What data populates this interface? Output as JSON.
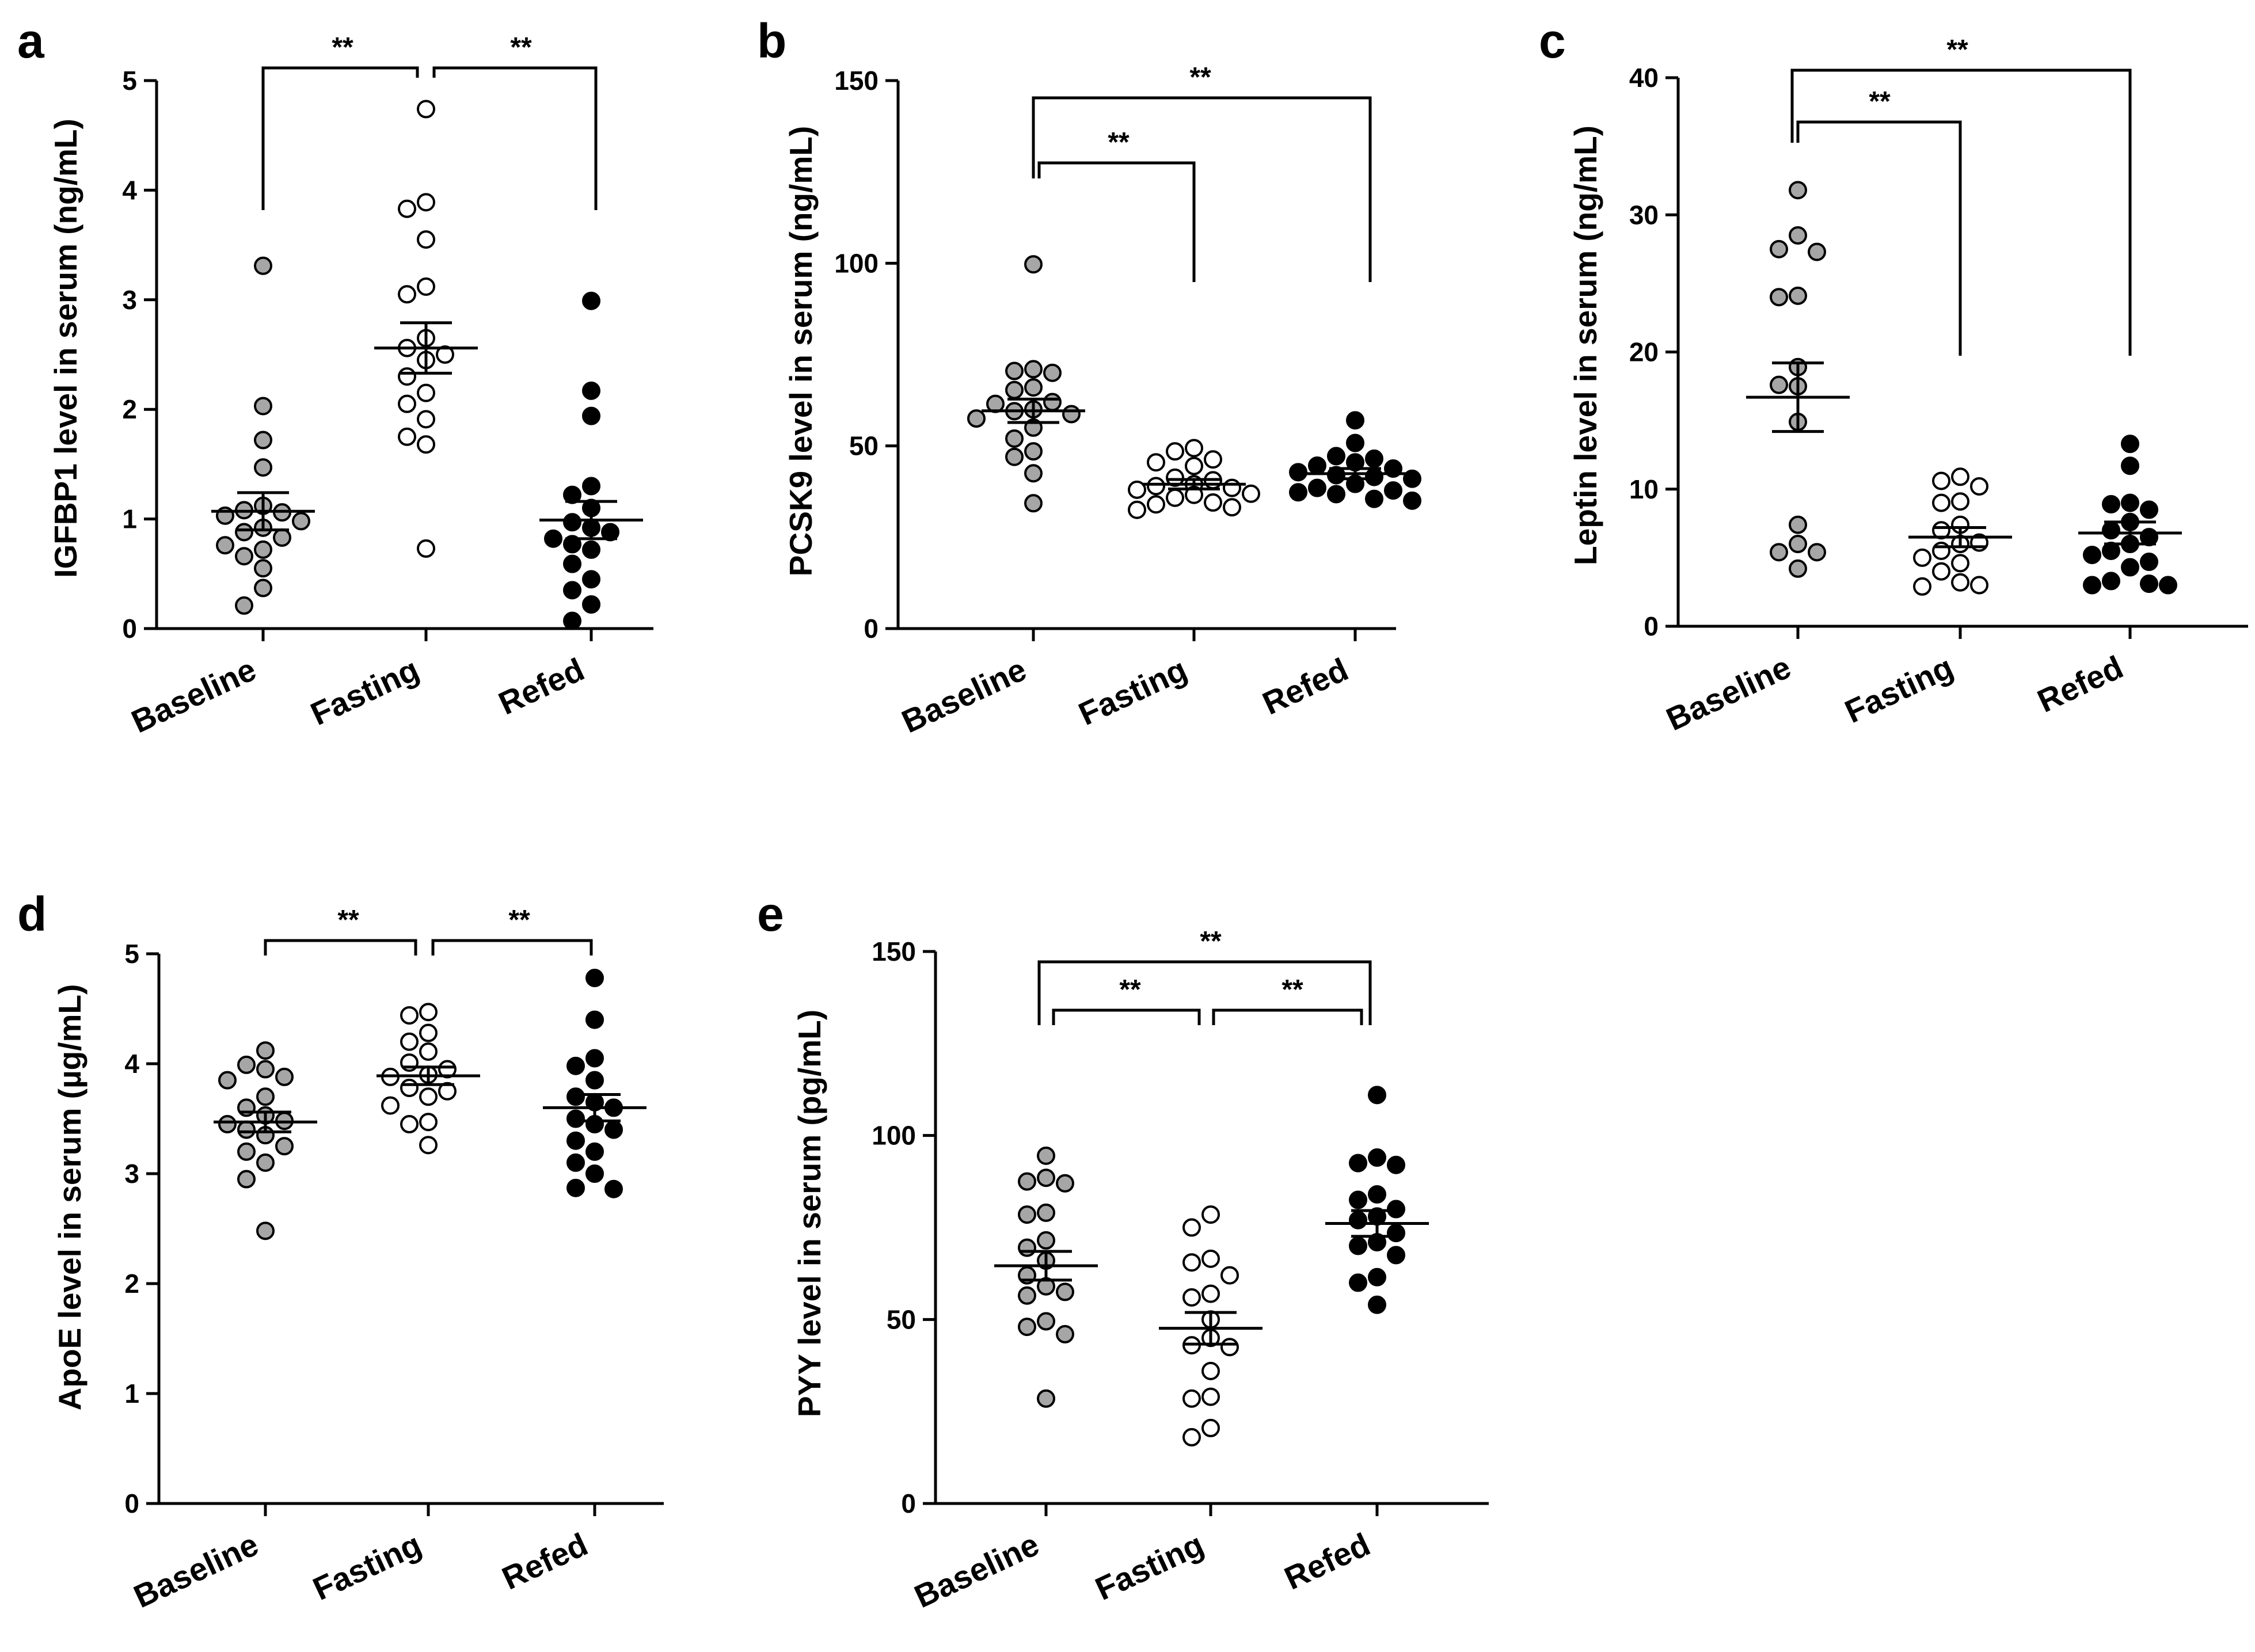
{
  "colors": {
    "baseline": "#a6a6a6",
    "fasting": "#ffffff",
    "refed": "#000000",
    "stroke": "#000000"
  },
  "chart_data": [
    {
      "panel": "a",
      "type": "scatter",
      "ylabel": "IGFBP1 level in serum (ng/mL)",
      "categories": [
        "Baseline",
        "Fasting",
        "Refed"
      ],
      "ylim": [
        0,
        5
      ],
      "yticks": [
        0,
        1,
        2,
        3,
        4,
        5
      ],
      "ytick_labels": [
        "0",
        "1",
        "2",
        "3",
        "4",
        "5"
      ],
      "series": [
        {
          "values": [
            3.31,
            2.03,
            1.72,
            1.47,
            1.12,
            1.08,
            1.06,
            1.03,
            0.98,
            0.92,
            0.88,
            0.83,
            0.76,
            0.72,
            0.66,
            0.55,
            0.37,
            0.21
          ],
          "mean": 1.07,
          "sem": 0.17
        },
        {
          "values": [
            4.74,
            3.89,
            3.83,
            3.55,
            3.12,
            3.05,
            2.65,
            2.56,
            2.5,
            2.45,
            2.3,
            2.15,
            2.05,
            1.91,
            1.75,
            1.68,
            0.73
          ],
          "mean": 2.56,
          "sem": 0.23
        },
        {
          "values": [
            2.99,
            2.17,
            1.94,
            1.3,
            1.22,
            1.1,
            0.97,
            0.92,
            0.88,
            0.82,
            0.77,
            0.72,
            0.59,
            0.45,
            0.35,
            0.22,
            0.07
          ],
          "mean": 0.99,
          "sem": 0.17
        }
      ],
      "significance": [
        {
          "from": 0,
          "to": 1,
          "label": "**"
        },
        {
          "from": 1,
          "to": 2,
          "label": "**"
        }
      ]
    },
    {
      "panel": "b",
      "type": "scatter",
      "ylabel": "PCSK9 level in serum (ng/mL)",
      "categories": [
        "Baseline",
        "Fasting",
        "Refed"
      ],
      "ylim": [
        0,
        150
      ],
      "yticks": [
        0,
        50,
        100,
        150
      ],
      "ytick_labels": [
        "0",
        "50",
        "100",
        "150"
      ],
      "series": [
        {
          "values": [
            99.7,
            71.0,
            70.5,
            70.0,
            66.0,
            65.3,
            62.0,
            61.5,
            60.0,
            59.5,
            58.7,
            57.5,
            55.0,
            52.0,
            48.5,
            47.0,
            42.5,
            34.3
          ],
          "mean": 59.6,
          "sem": 3.2
        },
        {
          "values": [
            49.4,
            48.5,
            46.3,
            45.5,
            44.5,
            41.3,
            40.6,
            39.5,
            39.0,
            38.5,
            38.0,
            36.9,
            36.6,
            35.8,
            34.5,
            34.0,
            33.2,
            32.5
          ],
          "mean": 39.5,
          "sem": 1.3
        },
        {
          "values": [
            57.0,
            50.8,
            47.2,
            46.5,
            45.5,
            44.6,
            43.8,
            42.8,
            42.0,
            41.5,
            41.0,
            39.6,
            38.5,
            37.8,
            37.3,
            36.8,
            35.5,
            35.0
          ],
          "mean": 42.4,
          "sem": 1.4
        }
      ],
      "significance": [
        {
          "from": 0,
          "to": 1,
          "label": "**"
        },
        {
          "from": 0,
          "to": 2,
          "label": "**"
        }
      ]
    },
    {
      "panel": "c",
      "type": "scatter",
      "ylabel": "Leptin level in serum (ng/mL)",
      "categories": [
        "Baseline",
        "Fasting",
        "Refed"
      ],
      "ylim": [
        0,
        40
      ],
      "yticks": [
        0,
        10,
        20,
        30,
        40
      ],
      "ytick_labels": [
        "0",
        "10",
        "20",
        "30",
        "40"
      ],
      "series": [
        {
          "values": [
            31.8,
            28.5,
            27.5,
            27.3,
            24.1,
            24.0,
            18.9,
            17.6,
            17.5,
            14.9,
            7.4,
            6.0,
            5.4,
            5.4,
            4.2
          ],
          "mean": 16.7,
          "sem": 2.5
        },
        {
          "values": [
            10.9,
            10.6,
            10.2,
            9.1,
            9.0,
            7.4,
            7.0,
            6.1,
            6.0,
            5.5,
            5.0,
            4.6,
            4.0,
            3.2,
            3.0,
            2.9
          ],
          "mean": 6.5,
          "sem": 0.7
        },
        {
          "values": [
            13.3,
            11.7,
            9.0,
            8.9,
            8.5,
            7.6,
            7.0,
            6.5,
            6.0,
            5.5,
            5.2,
            4.7,
            4.3,
            3.3,
            3.1,
            3.0,
            3.0
          ],
          "mean": 6.8,
          "sem": 0.8
        }
      ],
      "significance": [
        {
          "from": 0,
          "to": 1,
          "label": "**"
        },
        {
          "from": 0,
          "to": 2,
          "label": "**"
        }
      ]
    },
    {
      "panel": "d",
      "type": "scatter",
      "ylabel": "ApoE level in serum (µg/mL)",
      "categories": [
        "Baseline",
        "Fasting",
        "Refed"
      ],
      "ylim": [
        0,
        5
      ],
      "yticks": [
        0,
        1,
        2,
        3,
        4,
        5
      ],
      "ytick_labels": [
        "0",
        "1",
        "2",
        "3",
        "4",
        "5"
      ],
      "series": [
        {
          "values": [
            4.12,
            3.99,
            3.95,
            3.88,
            3.85,
            3.7,
            3.6,
            3.53,
            3.48,
            3.45,
            3.4,
            3.35,
            3.25,
            3.2,
            3.1,
            2.95,
            2.48
          ],
          "mean": 3.47,
          "sem": 0.09
        },
        {
          "values": [
            4.47,
            4.44,
            4.28,
            4.2,
            4.11,
            4.01,
            3.95,
            3.9,
            3.88,
            3.78,
            3.75,
            3.7,
            3.62,
            3.47,
            3.45,
            3.26
          ],
          "mean": 3.89,
          "sem": 0.08
        },
        {
          "values": [
            4.78,
            4.4,
            4.05,
            3.98,
            3.85,
            3.7,
            3.65,
            3.6,
            3.5,
            3.45,
            3.4,
            3.3,
            3.2,
            3.1,
            3.0,
            2.87,
            2.86
          ],
          "mean": 3.6,
          "sem": 0.12
        }
      ],
      "significance": [
        {
          "from": 0,
          "to": 1,
          "label": "**"
        },
        {
          "from": 1,
          "to": 2,
          "label": "**"
        }
      ]
    },
    {
      "panel": "e",
      "type": "scatter",
      "ylabel": "PYY level in serum (pg/mL)",
      "categories": [
        "Baseline",
        "Fasting",
        "Refed"
      ],
      "ylim": [
        0,
        150
      ],
      "yticks": [
        0,
        50,
        100,
        150
      ],
      "ytick_labels": [
        "0",
        "50",
        "100",
        "150"
      ],
      "series": [
        {
          "values": [
            94.5,
            88.5,
            87.5,
            87.0,
            79.0,
            78.5,
            71.5,
            69.5,
            66.0,
            62.0,
            59.0,
            57.5,
            56.5,
            49.5,
            48.0,
            46.0,
            28.5
          ],
          "mean": 64.6,
          "sem": 3.9
        },
        {
          "values": [
            78.5,
            75.0,
            66.5,
            65.5,
            62.0,
            57.0,
            56.0,
            50.0,
            45.0,
            43.0,
            42.5,
            36.0,
            29.0,
            28.5,
            20.5,
            18.0
          ],
          "mean": 47.6,
          "sem": 4.3
        },
        {
          "values": [
            111.0,
            94.0,
            92.5,
            92.0,
            84.0,
            82.5,
            80.0,
            78.0,
            77.0,
            73.5,
            71.0,
            70.0,
            67.5,
            61.5,
            60.0,
            54.0
          ],
          "mean": 76.1,
          "sem": 3.5
        }
      ],
      "significance": [
        {
          "from": 0,
          "to": 1,
          "label": "**"
        },
        {
          "from": 1,
          "to": 2,
          "label": "**"
        },
        {
          "from": 0,
          "to": 2,
          "label": "**"
        }
      ]
    }
  ]
}
